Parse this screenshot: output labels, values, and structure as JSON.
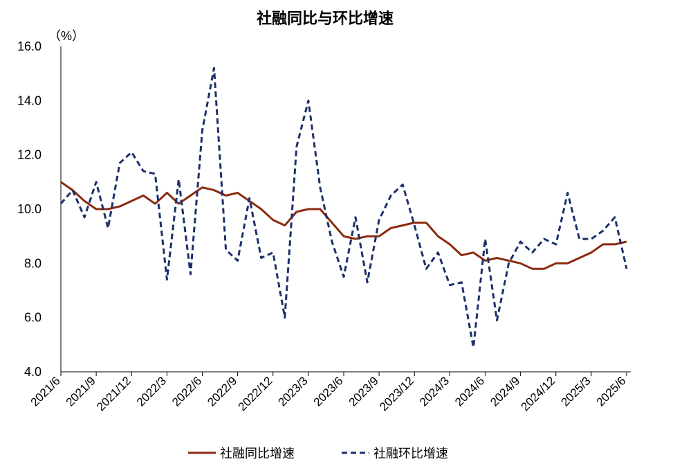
{
  "chart_data": {
    "type": "line",
    "title": "社融同比与环比增速",
    "unit_label": "（%）",
    "ylim": [
      4.0,
      16.0
    ],
    "yticks": [
      "4.0",
      "6.0",
      "8.0",
      "10.0",
      "12.0",
      "14.0",
      "16.0"
    ],
    "grid": false,
    "legend_position": "bottom",
    "x": [
      "2021/6",
      "2021/7",
      "2021/8",
      "2021/9",
      "2021/10",
      "2021/11",
      "2021/12",
      "2022/1",
      "2022/2",
      "2022/3",
      "2022/4",
      "2022/5",
      "2022/6",
      "2022/7",
      "2022/8",
      "2022/9",
      "2022/10",
      "2022/11",
      "2022/12",
      "2023/1",
      "2023/2",
      "2023/3",
      "2023/4",
      "2023/5",
      "2023/6",
      "2023/7",
      "2023/8",
      "2023/9",
      "2023/10",
      "2023/11",
      "2023/12",
      "2024/1",
      "2024/2",
      "2024/3",
      "2024/4",
      "2024/5",
      "2024/6",
      "2024/7",
      "2024/8",
      "2024/9",
      "2024/10",
      "2024/11",
      "2024/12",
      "2025/1",
      "2025/2",
      "2025/3",
      "2025/4",
      "2025/5",
      "2025/6"
    ],
    "xtick_labels": [
      "2021/6",
      "2021/9",
      "2021/12",
      "2022/3",
      "2022/6",
      "2022/9",
      "2022/12",
      "2023/3",
      "2023/6",
      "2023/9",
      "2023/12",
      "2024/3",
      "2024/6",
      "2024/9",
      "2024/12",
      "2025/3",
      "2025/6"
    ],
    "series": [
      {
        "name": "社融同比增速",
        "style": "solid",
        "color": "#8B2A0E",
        "values": [
          11.0,
          10.7,
          10.3,
          10.0,
          10.0,
          10.1,
          10.3,
          10.5,
          10.2,
          10.6,
          10.2,
          10.5,
          10.8,
          10.7,
          10.5,
          10.6,
          10.3,
          10.0,
          9.6,
          9.4,
          9.9,
          10.0,
          10.0,
          9.5,
          9.0,
          8.9,
          9.0,
          9.0,
          9.3,
          9.4,
          9.5,
          9.5,
          9.0,
          8.7,
          8.3,
          8.4,
          8.1,
          8.2,
          8.1,
          8.0,
          7.8,
          7.8,
          8.0,
          8.0,
          8.2,
          8.4,
          8.7,
          8.7,
          8.8
        ]
      },
      {
        "name": "社融环比增速",
        "style": "dashed",
        "color": "#1B2F6B",
        "values": [
          10.2,
          10.7,
          9.7,
          11.0,
          9.3,
          11.7,
          12.1,
          11.4,
          11.3,
          7.4,
          11.1,
          7.6,
          12.9,
          15.2,
          8.5,
          8.1,
          10.4,
          8.2,
          8.4,
          6.0,
          12.3,
          14.0,
          10.8,
          8.8,
          7.5,
          9.7,
          7.3,
          9.6,
          10.5,
          10.9,
          9.4,
          7.8,
          8.4,
          7.2,
          7.3,
          4.9,
          8.9,
          5.9,
          8.0,
          8.8,
          8.4,
          8.9,
          8.7,
          10.6,
          8.9,
          8.9,
          9.2,
          9.7,
          7.8
        ]
      }
    ]
  }
}
